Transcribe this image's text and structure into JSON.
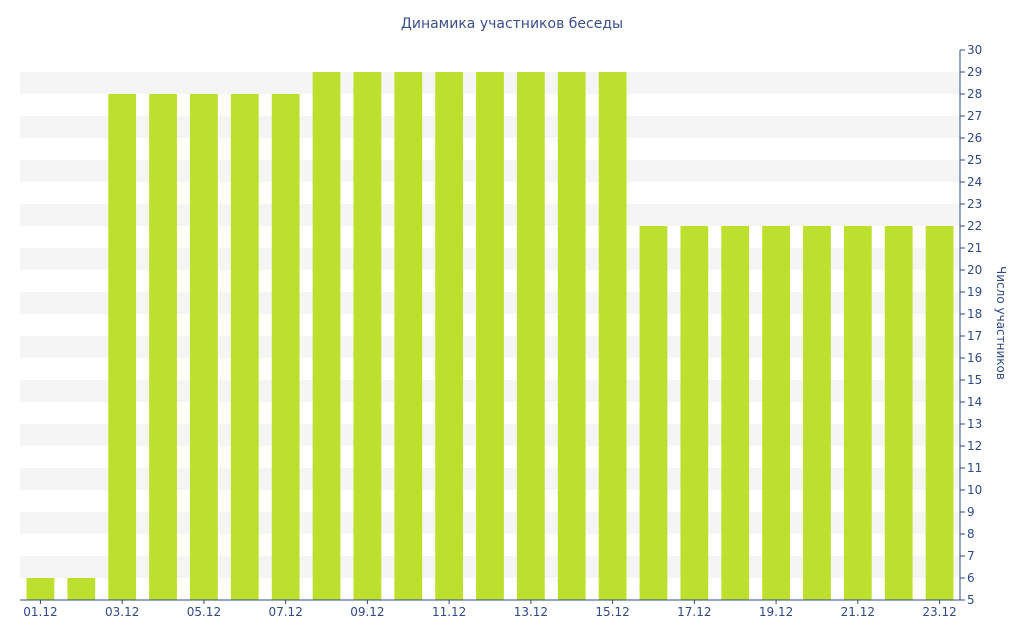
{
  "chart_data": {
    "type": "bar",
    "title": "Динамика участников беседы",
    "ylabel": "Число участников",
    "xlabel": "",
    "categories": [
      "01.12",
      "02.12",
      "03.12",
      "04.12",
      "05.12",
      "06.12",
      "07.12",
      "08.12",
      "09.12",
      "10.12",
      "11.12",
      "12.12",
      "13.12",
      "14.12",
      "15.12",
      "16.12",
      "17.12",
      "18.12",
      "19.12",
      "20.12",
      "21.12",
      "22.12",
      "23.12"
    ],
    "x_tick_labels": [
      "01.12",
      "03.12",
      "05.12",
      "07.12",
      "09.12",
      "11.12",
      "13.12",
      "15.12",
      "17.12",
      "19.12",
      "21.12",
      "23.12"
    ],
    "values": [
      6,
      6,
      28,
      28,
      28,
      28,
      28,
      29,
      29,
      29,
      29,
      29,
      29,
      29,
      29,
      22,
      22,
      22,
      22,
      22,
      22,
      22,
      22
    ],
    "ylim": [
      5,
      30
    ],
    "y_ticks": [
      5,
      6,
      7,
      8,
      9,
      10,
      11,
      12,
      13,
      14,
      15,
      16,
      17,
      18,
      19,
      20,
      21,
      22,
      23,
      24,
      25,
      26,
      27,
      28,
      29,
      30
    ],
    "y_axis_position": "right",
    "grid": "alternating horizontal bands",
    "bar_color": "#bde02e",
    "axis_color": "#2f4a8a",
    "title_color": "#3a4f8c"
  }
}
